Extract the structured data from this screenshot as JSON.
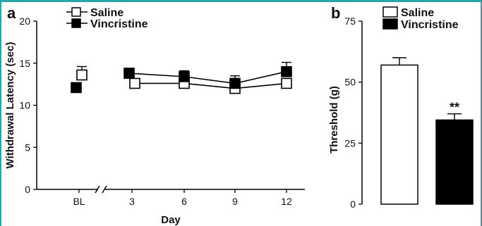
{
  "chart_data": [
    {
      "panel": "a",
      "type": "line",
      "xlabel": "Day",
      "ylabel": "Withdrawal Latency (sec)",
      "categories": [
        "BL",
        "3",
        "6",
        "9",
        "12"
      ],
      "axis_break_between": [
        "BL",
        "3"
      ],
      "ylim": [
        0,
        20
      ],
      "yticks": [
        "0",
        "5",
        "10",
        "15",
        "20"
      ],
      "legend_placement": "top-left",
      "series": [
        {
          "name": "Saline",
          "marker": "open-square",
          "values": [
            13.6,
            12.6,
            12.6,
            12.0,
            12.6
          ],
          "errors": [
            1.0,
            0.5,
            0.5,
            0.5,
            0.5
          ]
        },
        {
          "name": "Vincristine",
          "marker": "filled-square",
          "values": [
            12.1,
            13.8,
            13.4,
            12.6,
            14.0
          ],
          "errors": [
            0.4,
            0.6,
            0.7,
            0.9,
            1.1
          ]
        }
      ]
    },
    {
      "panel": "b",
      "type": "bar",
      "xlabel": "",
      "ylabel": "Threshold (g)",
      "categories": [
        "Saline",
        "Vincristine"
      ],
      "ylim": [
        0,
        75
      ],
      "yticks": [
        "0",
        "25",
        "50",
        "75"
      ],
      "legend_placement": "top",
      "values": [
        57.0,
        34.5
      ],
      "errors": [
        3.0,
        2.5
      ],
      "annotations": [
        "",
        "**"
      ],
      "colors": [
        "#ffffff",
        "#000000"
      ]
    }
  ]
}
